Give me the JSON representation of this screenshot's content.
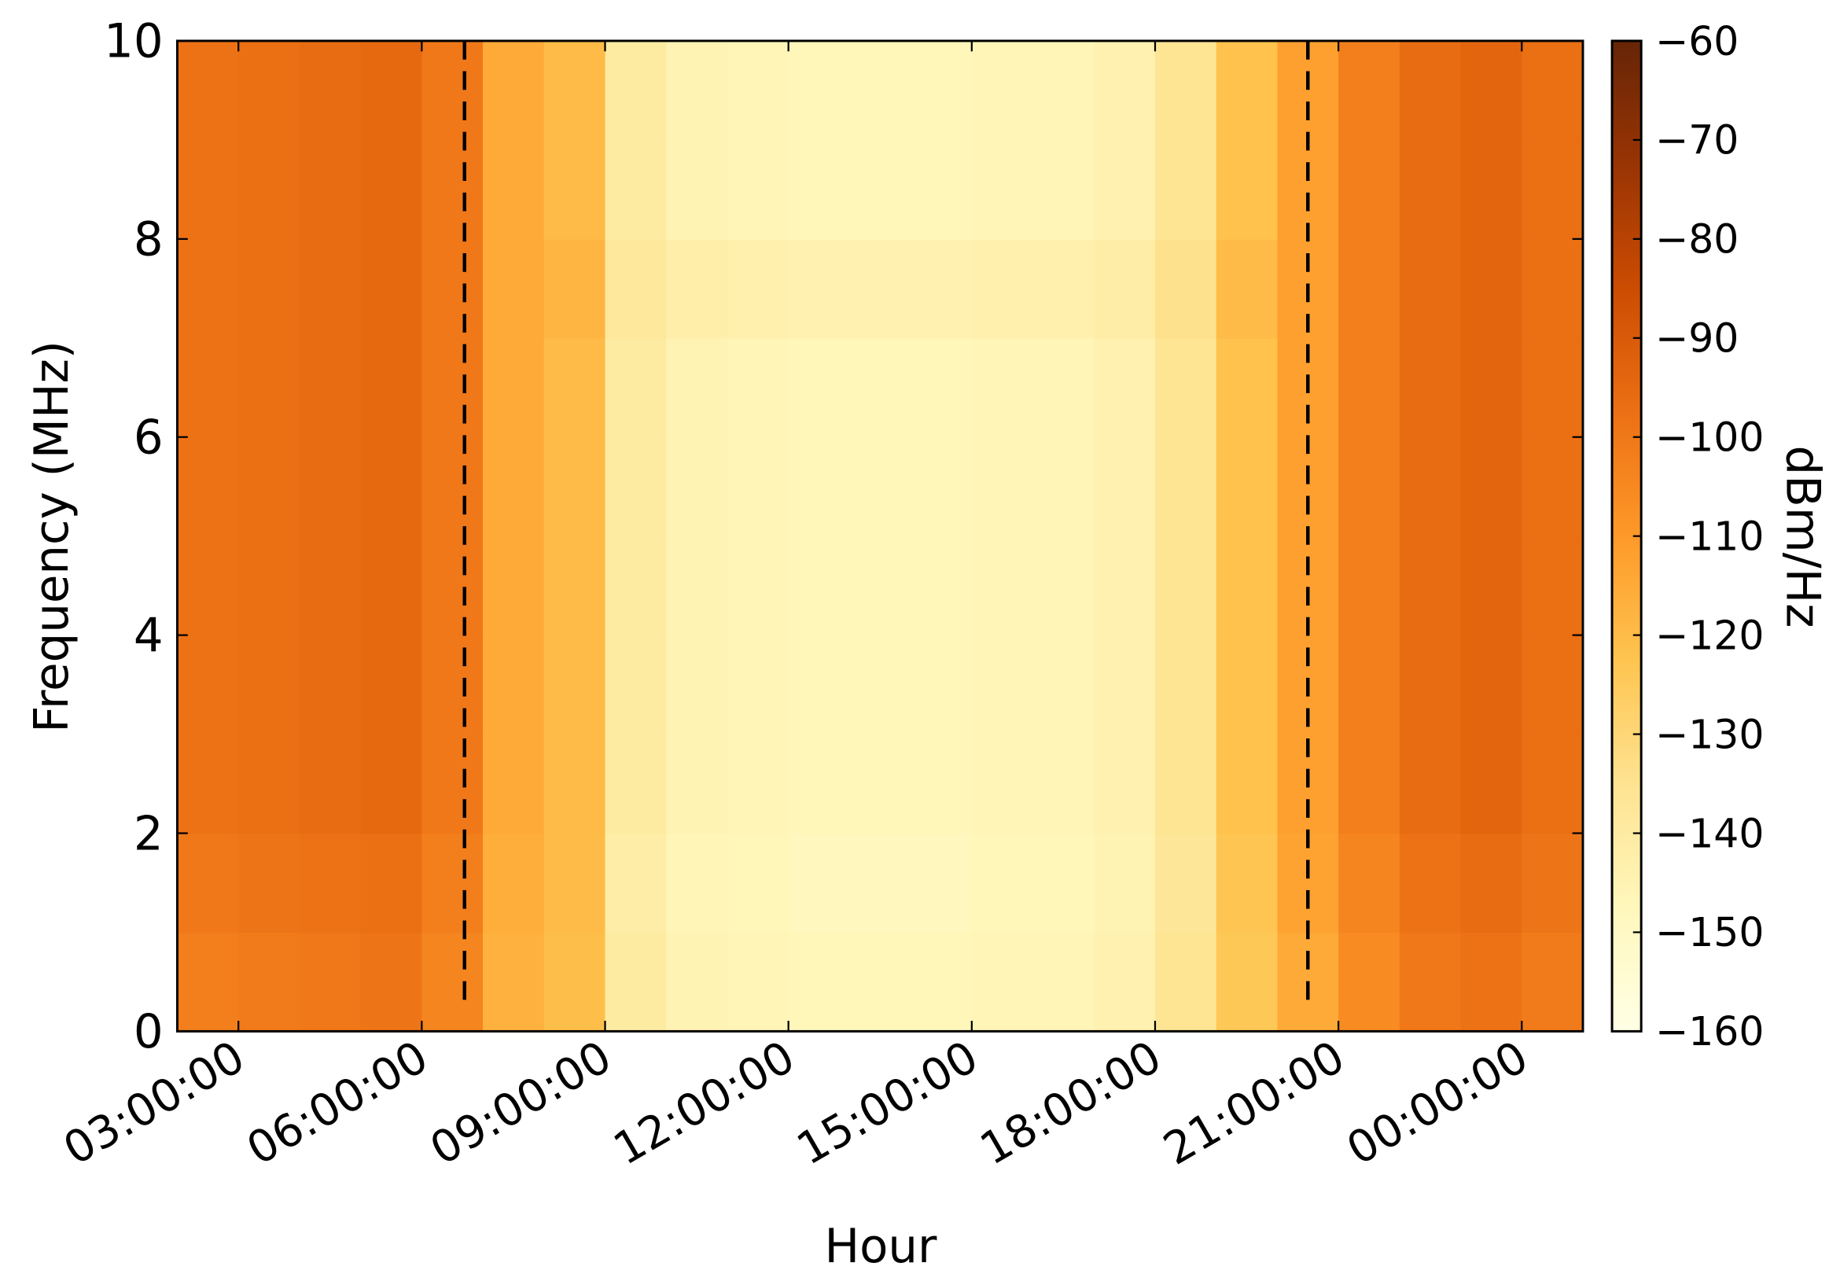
{
  "chart_data": {
    "type": "heatmap",
    "x_label": "Hour",
    "y_label": "Frequency (MHz)",
    "colorbar_label": "dBm/Hz",
    "xlim": [
      2,
      25
    ],
    "xticks": [
      {
        "value": 3,
        "label": "03:00:00"
      },
      {
        "value": 6,
        "label": "06:00:00"
      },
      {
        "value": 9,
        "label": "09:00:00"
      },
      {
        "value": 12,
        "label": "12:00:00"
      },
      {
        "value": 15,
        "label": "15:00:00"
      },
      {
        "value": 18,
        "label": "18:00:00"
      },
      {
        "value": 21,
        "label": "21:00:00"
      },
      {
        "value": 24,
        "label": "00:00:00"
      }
    ],
    "ylim": [
      0,
      10
    ],
    "yticks": [
      0,
      2,
      4,
      6,
      8,
      10
    ],
    "clim": [
      -160,
      -60
    ],
    "cticks": [
      {
        "value": -60,
        "label": "−60"
      },
      {
        "value": -70,
        "label": "−70"
      },
      {
        "value": -80,
        "label": "−80"
      },
      {
        "value": -90,
        "label": "−90"
      },
      {
        "value": -100,
        "label": "−100"
      },
      {
        "value": -110,
        "label": "−110"
      },
      {
        "value": -120,
        "label": "−120"
      },
      {
        "value": -130,
        "label": "−130"
      },
      {
        "value": -140,
        "label": "−140"
      },
      {
        "value": -150,
        "label": "−150"
      },
      {
        "value": -160,
        "label": "−160"
      }
    ],
    "colorscale": [
      "#ffffe5",
      "#fff7bc",
      "#fee391",
      "#fec44f",
      "#fe9929",
      "#ec7014",
      "#cc4c02",
      "#993404",
      "#662506"
    ],
    "vlines": [
      6.7,
      20.5
    ],
    "x": [
      2.5,
      3.5,
      4.5,
      5.5,
      6.5,
      7.5,
      8.5,
      9.5,
      10.5,
      11.5,
      12.5,
      13.5,
      14.5,
      15.5,
      16.5,
      17.5,
      18.5,
      19.5,
      20.5,
      21.5,
      22.5,
      23.5,
      24.5
    ],
    "y": [
      0.5,
      1.5,
      2.5,
      3.5,
      4.5,
      5.5,
      6.5,
      7.5,
      8.5,
      9.5
    ],
    "z": [
      [
        -102,
        -101,
        -100,
        -99,
        -104,
        -117,
        -121,
        -140,
        -145,
        -146,
        -147,
        -147,
        -147,
        -146,
        -146,
        -144,
        -136,
        -124,
        -115,
        -106,
        -100,
        -98,
        -101
      ],
      [
        -100,
        -99,
        -98,
        -97,
        -102,
        -116,
        -120,
        -141,
        -146,
        -147,
        -148,
        -148,
        -148,
        -147,
        -147,
        -145,
        -137,
        -123,
        -113,
        -104,
        -98,
        -96,
        -99
      ],
      [
        -98,
        -97,
        -96,
        -95,
        -100,
        -115,
        -120,
        -140,
        -145,
        -146,
        -147,
        -147,
        -147,
        -146,
        -146,
        -144,
        -136,
        -122,
        -112,
        -102,
        -96,
        -94,
        -97
      ],
      [
        -98,
        -97,
        -96,
        -95,
        -100,
        -115,
        -120,
        -140,
        -145,
        -146,
        -147,
        -147,
        -147,
        -146,
        -146,
        -144,
        -136,
        -122,
        -112,
        -102,
        -96,
        -94,
        -97
      ],
      [
        -98,
        -97,
        -96,
        -95,
        -100,
        -115,
        -120,
        -140,
        -145,
        -146,
        -147,
        -147,
        -147,
        -146,
        -146,
        -144,
        -136,
        -122,
        -112,
        -102,
        -96,
        -94,
        -97
      ],
      [
        -98,
        -97,
        -96,
        -95,
        -100,
        -115,
        -120,
        -140,
        -145,
        -146,
        -147,
        -147,
        -147,
        -146,
        -146,
        -144,
        -136,
        -122,
        -112,
        -102,
        -96,
        -94,
        -97
      ],
      [
        -98,
        -97,
        -96,
        -95,
        -100,
        -115,
        -120,
        -140,
        -145,
        -146,
        -147,
        -147,
        -147,
        -146,
        -146,
        -144,
        -136,
        -122,
        -112,
        -102,
        -96,
        -94,
        -97
      ],
      [
        -98,
        -97,
        -96,
        -95,
        -100,
        -115,
        -118,
        -138,
        -142,
        -143,
        -144,
        -144,
        -144,
        -143,
        -143,
        -141,
        -134,
        -120,
        -112,
        -102,
        -96,
        -94,
        -97
      ],
      [
        -98,
        -97,
        -96,
        -95,
        -100,
        -115,
        -120,
        -140,
        -145,
        -146,
        -147,
        -147,
        -147,
        -146,
        -146,
        -144,
        -136,
        -122,
        -112,
        -102,
        -96,
        -94,
        -97
      ],
      [
        -98,
        -97,
        -96,
        -95,
        -100,
        -115,
        -120,
        -140,
        -145,
        -146,
        -147,
        -147,
        -147,
        -146,
        -146,
        -144,
        -136,
        -122,
        -112,
        -102,
        -96,
        -94,
        -97
      ]
    ]
  }
}
